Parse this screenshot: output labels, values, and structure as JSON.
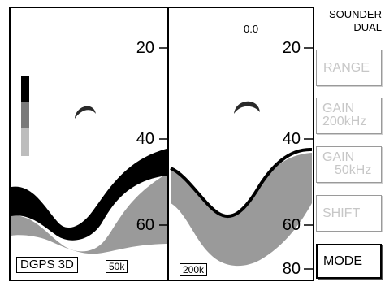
{
  "header": {
    "mode_line1": "SOUNDER",
    "mode_line2": "DUAL",
    "shift_value": "0.0"
  },
  "left_panel": {
    "frequency": "50k",
    "nav_status": "DGPS 3D",
    "depth_scale": [
      "20",
      "40",
      "60"
    ]
  },
  "right_panel": {
    "frequency": "200k",
    "depth_scale": [
      "20",
      "40",
      "60",
      "80"
    ]
  },
  "color_bar": {
    "levels": [
      "#000000",
      "#7a7a7a",
      "#bdbdbd"
    ]
  },
  "echo_colors": {
    "strong": "#000000",
    "medium": "#6e6e6e",
    "weak": "#9a9a9a",
    "dark": "#2a2a2a"
  },
  "softkeys": [
    {
      "line1": "RANGE",
      "line2": "",
      "active": false
    },
    {
      "line1": "GAIN",
      "line2": "200kHz",
      "active": false
    },
    {
      "line1": "GAIN",
      "line2": "50kHz",
      "active": false
    },
    {
      "line1": "SHIFT",
      "line2": "",
      "active": false
    },
    {
      "line1": "MODE",
      "line2": "",
      "active": true
    }
  ]
}
